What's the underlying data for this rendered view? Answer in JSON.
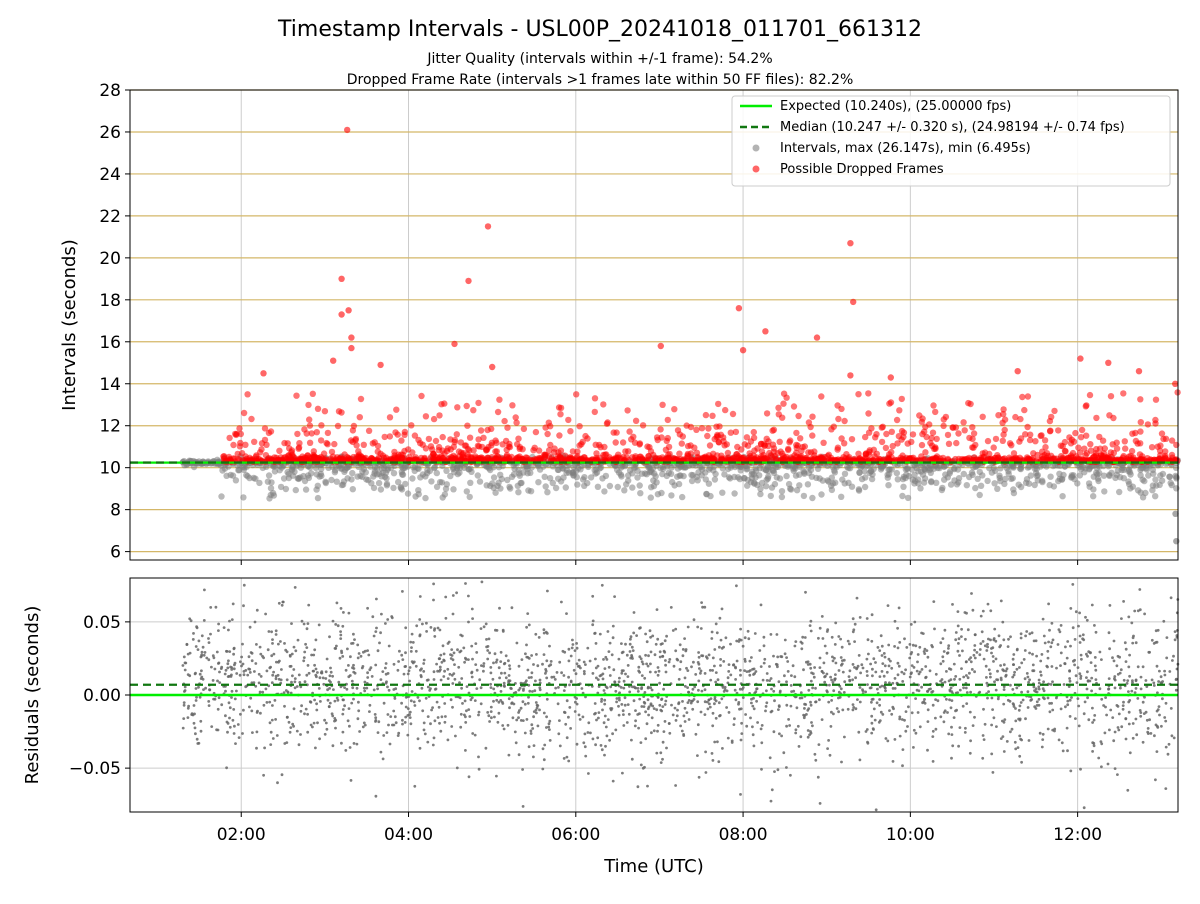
{
  "title": "Timestamp Intervals - USL00P_20241018_011701_661312",
  "subtitle_1": "Jitter Quality (intervals within +/-1 frame): 54.2%",
  "subtitle_2": "Dropped Frame Rate (intervals >1 frames late within 50 FF files): 82.2%",
  "colors": {
    "expected": "#00ee00",
    "median": "#117711",
    "intervals": "#808080",
    "dropped": "#ff0000",
    "hgrid": "#d4b768",
    "grid": "#cccccc"
  },
  "chart_data": [
    {
      "type": "scatter",
      "ylabel": "Intervals (seconds)",
      "ylim": [
        5.6,
        28
      ],
      "yticks": [
        "6",
        "8",
        "10",
        "12",
        "14",
        "16",
        "18",
        "20",
        "22",
        "24",
        "26",
        "28"
      ],
      "xlim_hours": [
        0.67,
        13.2
      ],
      "grid": "on",
      "legend_position": "top-right",
      "legend": [
        "Expected (10.240s), (25.00000 fps)",
        "Median (10.247 +/- 0.320 s), (24.98194 +/- 0.74 fps)",
        "Intervals, max (26.147s), min (6.495s)",
        "Possible Dropped Frames"
      ],
      "series": [
        {
          "name": "Expected (10.240s), (25.00000 fps)",
          "kind": "hline",
          "y": 10.24
        },
        {
          "name": "Median (10.247 +/- 0.320 s), (24.98194 +/- 0.74 fps)",
          "kind": "hline-dashed",
          "y": 10.247
        },
        {
          "name": "Intervals, max (26.147s), min (6.495s)",
          "kind": "scatter",
          "x_start": "01:18",
          "x_end": "13:12",
          "count": 4200,
          "typical_y": 10.24,
          "min_y": 6.495,
          "max_y": 26.147
        },
        {
          "name": "Possible Dropped Frames",
          "kind": "scatter",
          "outliers": [
            {
              "x": "03:16",
              "y": 26.1
            },
            {
              "x": "04:57",
              "y": 21.5
            },
            {
              "x": "09:17",
              "y": 20.7
            },
            {
              "x": "03:12",
              "y": 19.0
            },
            {
              "x": "04:43",
              "y": 18.9
            },
            {
              "x": "09:19",
              "y": 17.9
            },
            {
              "x": "07:57",
              "y": 17.6
            },
            {
              "x": "03:17",
              "y": 17.5
            },
            {
              "x": "03:12",
              "y": 17.3
            },
            {
              "x": "08:16",
              "y": 16.5
            },
            {
              "x": "03:19",
              "y": 16.2
            },
            {
              "x": "08:53",
              "y": 16.2
            },
            {
              "x": "04:33",
              "y": 15.9
            },
            {
              "x": "07:01",
              "y": 15.8
            },
            {
              "x": "03:19",
              "y": 15.7
            },
            {
              "x": "08:00",
              "y": 15.6
            },
            {
              "x": "12:02",
              "y": 15.2
            },
            {
              "x": "03:06",
              "y": 15.1
            },
            {
              "x": "03:40",
              "y": 14.9
            },
            {
              "x": "12:22",
              "y": 15.0
            },
            {
              "x": "11:17",
              "y": 14.6
            },
            {
              "x": "02:16",
              "y": 14.5
            },
            {
              "x": "09:17",
              "y": 14.4
            },
            {
              "x": "09:46",
              "y": 14.3
            },
            {
              "x": "12:44",
              "y": 14.6
            },
            {
              "x": "05:00",
              "y": 14.8
            },
            {
              "x": "13:10",
              "y": 14.0
            }
          ],
          "band_y": [
            10.2,
            13.5
          ]
        }
      ]
    },
    {
      "type": "scatter",
      "ylabel": "Residuals (seconds)",
      "xlabel": "Time (UTC)",
      "ylim": [
        -0.08,
        0.08
      ],
      "yticks": [
        "0.05",
        "0.00",
        "−0.05"
      ],
      "xticks": [
        "02:00",
        "04:00",
        "06:00",
        "08:00",
        "10:00",
        "12:00"
      ],
      "grid": "on",
      "series": [
        {
          "kind": "hline",
          "y": 0.0
        },
        {
          "kind": "hline-dashed",
          "y": 0.007
        },
        {
          "kind": "scatter",
          "x_start": "01:18",
          "x_end": "13:12",
          "count": 2600,
          "y_range": [
            -0.08,
            0.08
          ],
          "typical_range": [
            -0.035,
            0.045
          ]
        }
      ]
    }
  ]
}
